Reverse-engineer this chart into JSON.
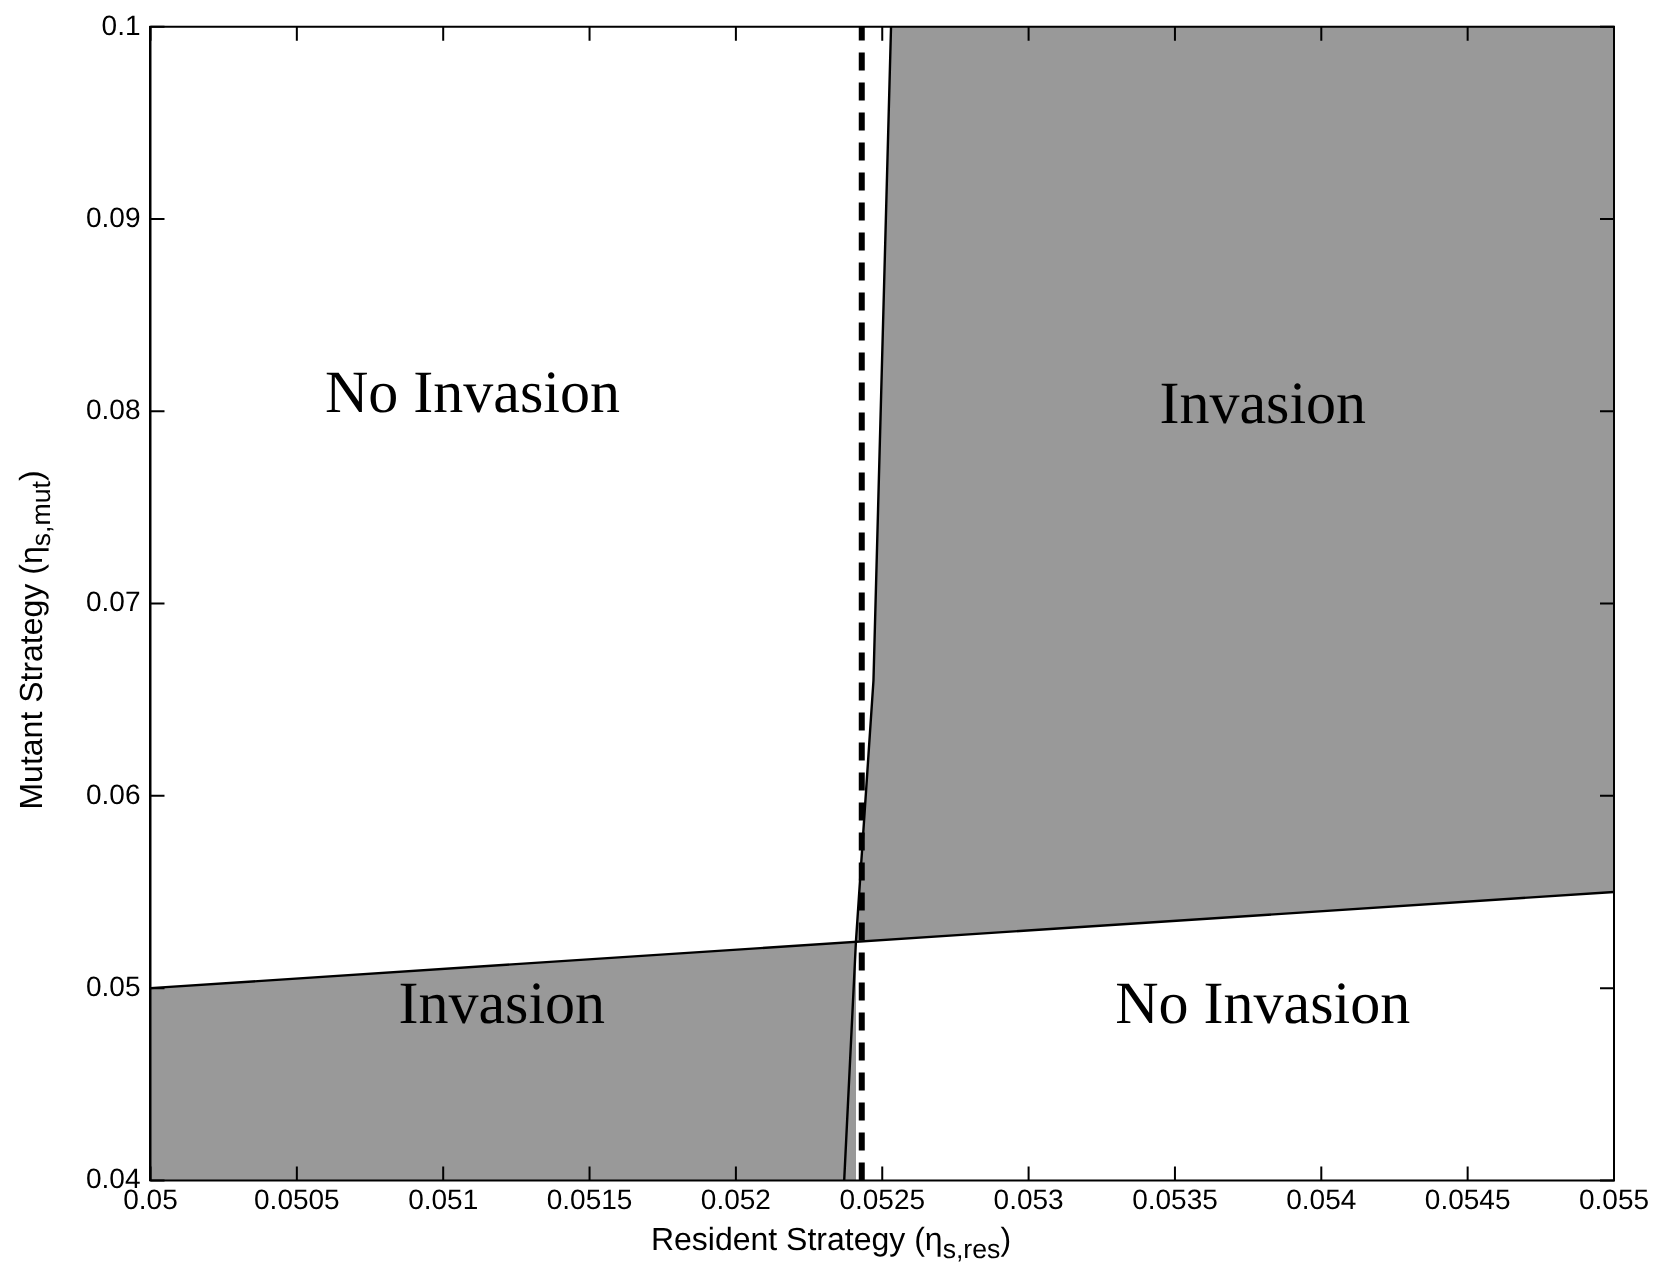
{
  "chart_data": {
    "type": "area",
    "xlabel": "Resident Strategy (η$_{s,res}$)",
    "ylabel": "Mutant Strategy (η$_{s,mut}$)",
    "series": [
      {
        "color": "#999999",
        "x": [
          0.05,
          0.05241,
          0.05247,
          0.05253,
          0.055
        ],
        "values": [
          0.05,
          0.0524,
          0.066,
          0.1,
          0.1
        ]
      },
      {
        "color": "#ffffff",
        "x": [
          0.05241,
          0.055
        ],
        "values": [
          0.0524,
          0.055
        ]
      },
      {
        "type": "line",
        "color": "#000000",
        "x": [
          0.05,
          0.055
        ],
        "values": [
          0.05,
          0.055
        ]
      },
      {
        "type": "line",
        "color": "#000000",
        "x": [
          0.05237,
          0.05241,
          0.05247,
          0.05253
        ],
        "values": [
          0.04,
          0.0524,
          0.066,
          0.1
        ]
      }
    ],
    "ref_lines": [
      {
        "axis": "x",
        "value": 0.05243,
        "color": "#000000",
        "line_style": "dashed"
      }
    ],
    "annotations": [
      "No Invasion",
      "Invasion",
      "Invasion",
      "No Invasion"
    ],
    "xlim": [
      0.05,
      0.055
    ],
    "xticks": [
      0.05,
      0.0505,
      0.051,
      0.0515,
      0.052,
      0.0525,
      0.053,
      0.0535,
      0.054,
      0.0545,
      0.055
    ],
    "ylim": [
      0.04,
      0.1
    ],
    "yticks": [
      0.04,
      0.05,
      0.06,
      0.07,
      0.08,
      0.09,
      0.1
    ],
    "grid": false,
    "legend": false,
    "marker": "none"
  }
}
